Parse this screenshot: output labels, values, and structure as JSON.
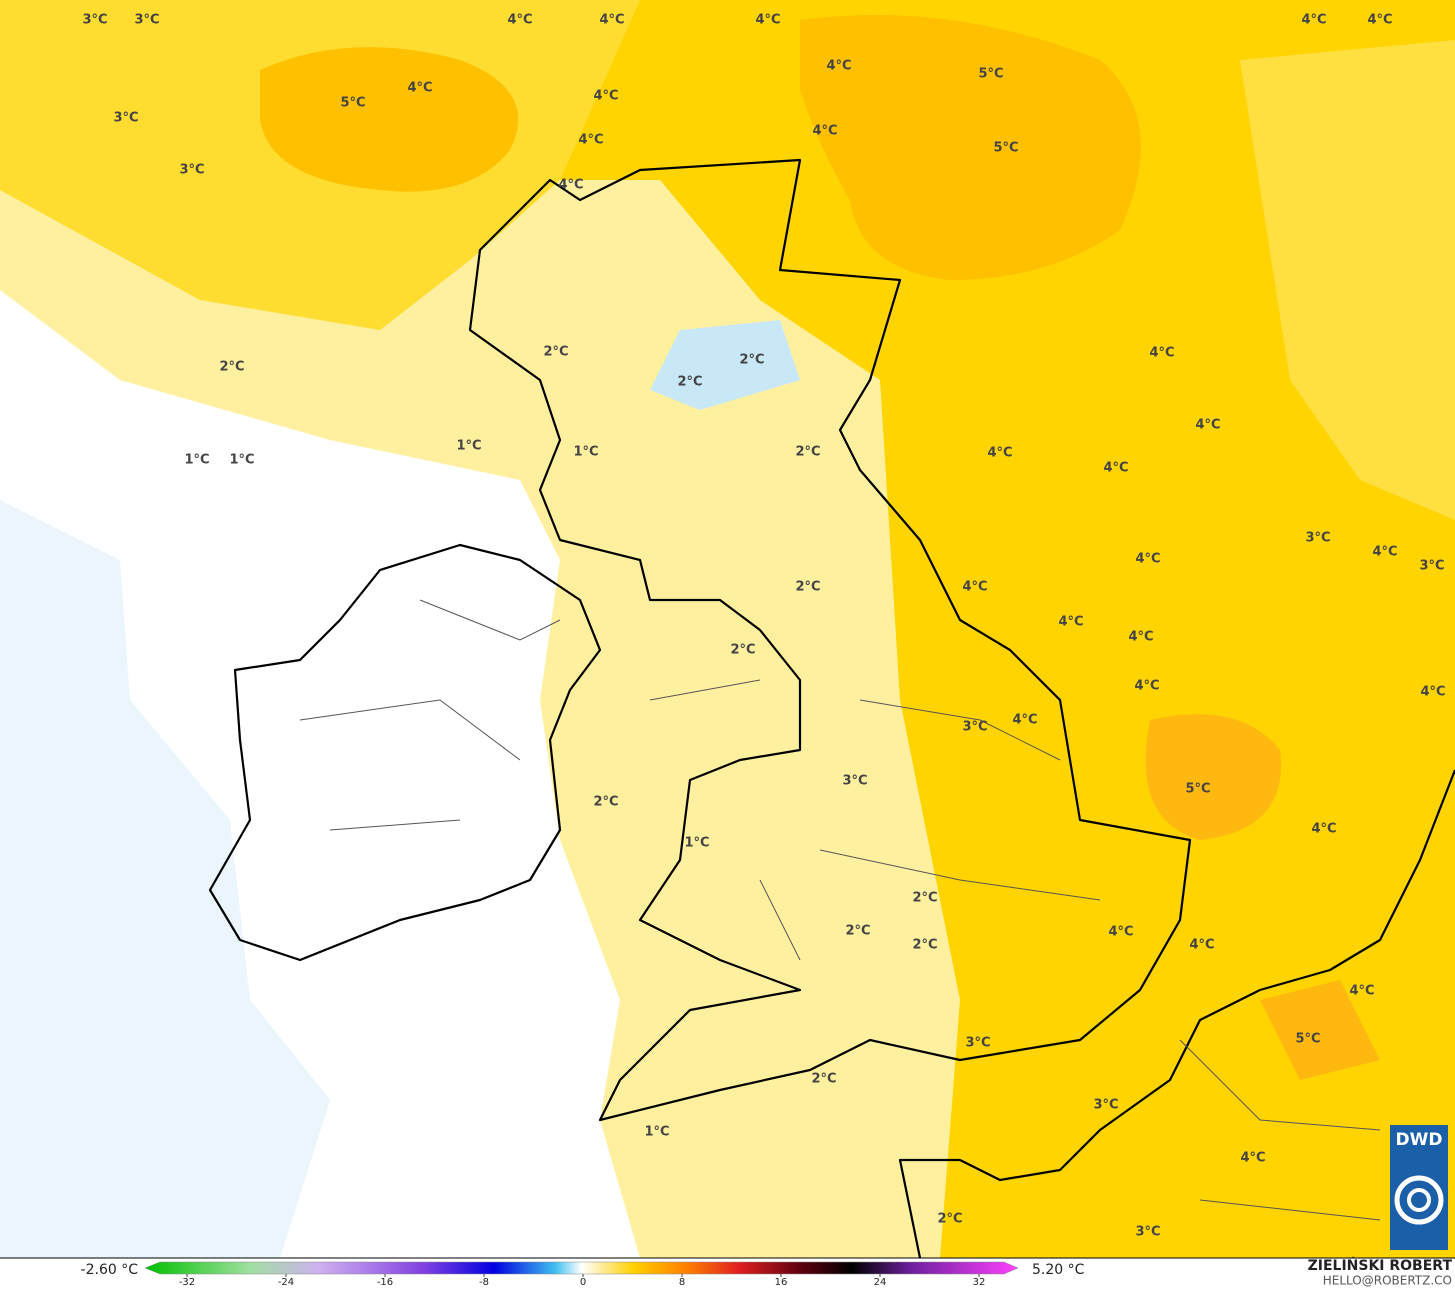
{
  "map_labels": [
    "3°C",
    "3°C",
    "4°C",
    "4°C",
    "4°C",
    "4°C",
    "4°C",
    "5°C",
    "4°C",
    "3°C",
    "4°C",
    "4°C",
    "5°C",
    "4°C",
    "4°C",
    "5°C",
    "3°C",
    "4°C",
    "2°C",
    "2°C",
    "2°C",
    "2°C",
    "4°C",
    "1°C",
    "1°C",
    "1°C",
    "1°C",
    "2°C",
    "4°C",
    "4°C",
    "4°C",
    "3°C",
    "4°C",
    "3°C",
    "4°C",
    "4°C",
    "2°C",
    "4°C",
    "4°C",
    "2°C",
    "4°C",
    "4°C",
    "3°C",
    "4°C",
    "3°C",
    "5°C",
    "2°C",
    "1°C",
    "4°C",
    "2°C",
    "2°C",
    "2°C",
    "4°C",
    "4°C",
    "4°C",
    "5°C",
    "3°C",
    "2°C",
    "3°C",
    "1°C",
    "4°C",
    "2°C",
    "3°C"
  ],
  "colorbar": {
    "min_label": "-2.60 °C",
    "max_label": "5.20 °C",
    "ticks": [
      -32,
      -24,
      -16,
      -8,
      0,
      8,
      16,
      24,
      32
    ]
  },
  "author": "ZIELIŃSKI ROBERT",
  "contact": "HELLO@ROBERTZ.CO",
  "logo": "DWD"
}
